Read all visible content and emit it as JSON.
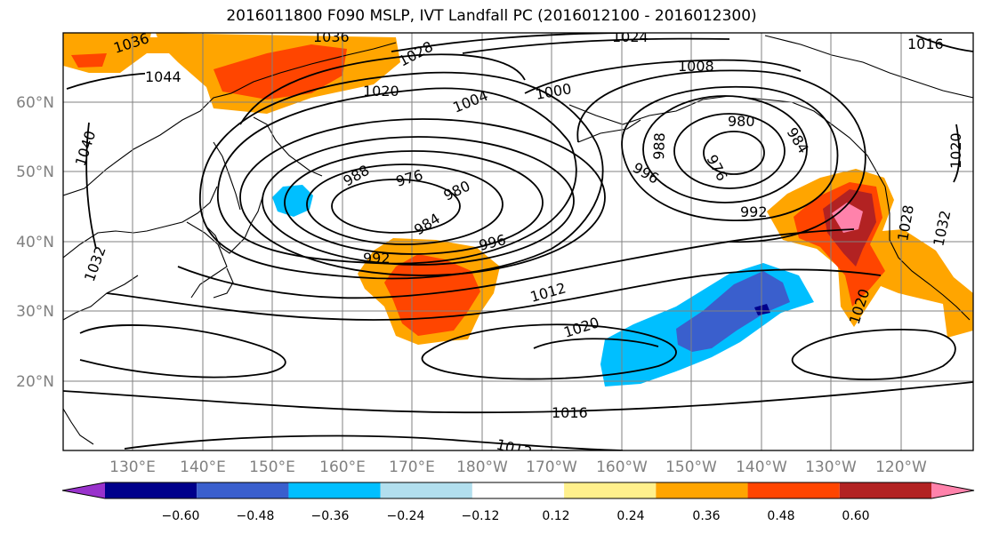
{
  "title": "2016011800 F090 MSLP, IVT Landfall PC (2016012100 - 2016012300)",
  "lat_labels": [
    "60°N",
    "50°N",
    "40°N",
    "30°N",
    "20°N"
  ],
  "lon_labels": [
    "130°E",
    "140°E",
    "150°E",
    "160°E",
    "170°E",
    "180°W",
    "170°W",
    "160°W",
    "150°W",
    "140°W",
    "130°W",
    "120°W"
  ],
  "contour_labels": [
    "1036",
    "1036",
    "1044",
    "1040",
    "1032",
    "1028",
    "1024",
    "1020",
    "1016",
    "1008",
    "1004",
    "1000",
    "988",
    "976",
    "980",
    "984",
    "992",
    "996",
    "980",
    "988",
    "976",
    "984",
    "996",
    "992",
    "1012",
    "1020",
    "1016",
    "1012",
    "1020",
    "1020",
    "1028",
    "1032"
  ],
  "colorbar": {
    "ticks": [
      "−0.60",
      "−0.48",
      "−0.36",
      "−0.24",
      "−0.12",
      "0.12",
      "0.24",
      "0.36",
      "0.48",
      "0.60"
    ],
    "colors": [
      "#9932cc",
      "#00008b",
      "#3a5fcd",
      "#00bfff",
      "#b2dfee",
      "#ffffff",
      "#fff08c",
      "#ffa500",
      "#ff4500",
      "#b22222",
      "#ff82ab"
    ]
  }
}
